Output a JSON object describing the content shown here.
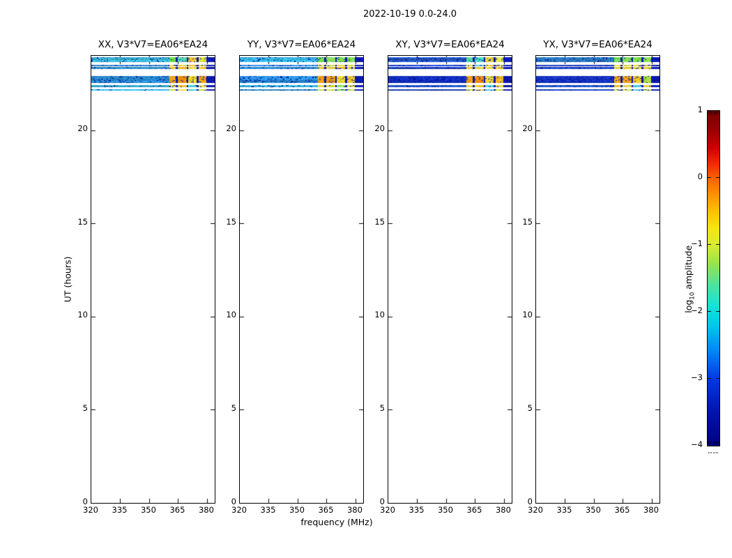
{
  "chart_data": {
    "type": "heatmap",
    "title": "2022-10-19 0.0-24.0",
    "xlabel": "frequency (MHz)",
    "ylabel": "UT (hours)",
    "x_range": [
      320,
      384
    ],
    "y_range": [
      0,
      24
    ],
    "x_ticks": [
      "320",
      "335",
      "350",
      "365",
      "380"
    ],
    "x_tick_values": [
      320,
      335,
      350,
      365,
      380
    ],
    "y_ticks": [
      "20",
      "15",
      "10",
      "5",
      "0"
    ],
    "y_tick_values": [
      20,
      15,
      10,
      5,
      0
    ],
    "grid": false,
    "stripe_rows": [
      {
        "id": "A",
        "ut": [
          23.68,
          23.93
        ]
      },
      {
        "id": "B",
        "ut": [
          23.45,
          23.53
        ]
      },
      {
        "id": "C",
        "ut": [
          23.3,
          23.39
        ]
      },
      {
        "id": "D",
        "ut": [
          22.53,
          22.9
        ]
      },
      {
        "id": "E",
        "ut": [
          22.31,
          22.42
        ]
      },
      {
        "id": "F",
        "ut": [
          22.13,
          22.22
        ]
      }
    ],
    "left_region": [
      0,
      0.63
    ],
    "block_segments": [
      [
        0.63,
        0.686
      ],
      [
        0.701,
        0.772
      ],
      [
        0.787,
        0.854
      ],
      [
        0.869,
        0.93
      ]
    ],
    "right_cap": [
      0.93,
      1.0
    ],
    "gap_color": "#0a18aa",
    "noise_navy": "#0614a0",
    "panels": [
      {
        "key": "xx",
        "label": "XX, V3*V7=EA06*EA24",
        "seed": 101,
        "rows": [
          {
            "left": "#3cc4e8",
            "noise": 0.08,
            "blocks": [
              "#68d844",
              "#52d4a8",
              "#eec22a",
              "#d8dc3a"
            ]
          },
          {
            "left": "#2e8ad8",
            "noise": 0.1,
            "blocks": [
              "#e8d444",
              "#e4cf3a",
              "#f0b824",
              "#e0d23f"
            ]
          },
          {
            "left": "#30a0e0",
            "noise": 0.09,
            "blocks": [
              "#eec22a",
              "#f0ac1c",
              "#e8d444",
              "#eec22a"
            ]
          },
          {
            "left": "#2a96e0",
            "noise": 0.11,
            "blocks": [
              "#f5a00e",
              "#f68e06",
              "#eed31f",
              "#f2a412"
            ]
          },
          {
            "left": "#34bce8",
            "noise": 0.08,
            "blocks": [
              "#e8d444",
              "#eec22a",
              "#44cce8",
              "#e0d23f"
            ]
          },
          {
            "left": "#30b0e4",
            "noise": 0.09,
            "blocks": [
              "#ccd838",
              "#e0d23f",
              "#4ccce0",
              "#c4d636"
            ]
          }
        ]
      },
      {
        "key": "yy",
        "label": "YY, V3*V7=EA06*EA24",
        "seed": 202,
        "rows": [
          {
            "left": "#34b4e2",
            "noise": 0.09,
            "blocks": [
              "#70da46",
              "#8ade5a",
              "#7cdc4c",
              "#82dc52"
            ]
          },
          {
            "left": "#2a7ed2",
            "noise": 0.11,
            "blocks": [
              "#e8d444",
              "#d8e048",
              "#e4cf3a",
              "#e8d444"
            ]
          },
          {
            "left": "#2c92da",
            "noise": 0.1,
            "blocks": [
              "#eec22a",
              "#e4cf3a",
              "#f0b424",
              "#e0d23f"
            ]
          },
          {
            "left": "#2a8cda",
            "noise": 0.12,
            "blocks": [
              "#f5a00e",
              "#f29808",
              "#e8cf3a",
              "#eec22a"
            ]
          },
          {
            "left": "#30b0e2",
            "noise": 0.09,
            "blocks": [
              "#e8d444",
              "#e0d23f",
              "#8ade5a",
              "#d8e048"
            ]
          },
          {
            "left": "#2ca4de",
            "noise": 0.1,
            "blocks": [
              "#c4d636",
              "#ccd838",
              "#70da46",
              "#c8d838"
            ]
          }
        ]
      },
      {
        "key": "xy",
        "label": "XY, V3*V7=EA06*EA24",
        "seed": 303,
        "rows": [
          {
            "left": "#2460d0",
            "noise": 0.16,
            "blocks": [
              "#54d89c",
              "#48d8c0",
              "#e4cf3a",
              "#d8e048"
            ]
          },
          {
            "left": "#1c40c6",
            "noise": 0.18,
            "blocks": [
              "#e8d444",
              "#48c8e4",
              "#eec22a",
              "#e0d23f"
            ]
          },
          {
            "left": "#1e48c8",
            "noise": 0.17,
            "blocks": [
              "#eec22a",
              "#e4cf3a",
              "#e8d444",
              "#eec22a"
            ]
          },
          {
            "left": "#1230ba",
            "noise": 0.2,
            "blocks": [
              "#f5a00e",
              "#f08c06",
              "#e4cf3a",
              "#f0b424"
            ]
          },
          {
            "left": "#2054cc",
            "noise": 0.16,
            "blocks": [
              "#e8d444",
              "#eec22a",
              "#48c8e4",
              "#e0d23f"
            ]
          },
          {
            "left": "#1c48c8",
            "noise": 0.17,
            "blocks": [
              "#ccd838",
              "#e0d23f",
              "#4ccce0",
              "#c4d636"
            ]
          }
        ]
      },
      {
        "key": "yx",
        "label": "YX, V3*V7=EA06*EA24",
        "seed": 404,
        "rows": [
          {
            "left": "#2c88d6",
            "noise": 0.13,
            "blocks": [
              "#70da46",
              "#82dc52",
              "#7cdc4c",
              "#8ade5a"
            ]
          },
          {
            "left": "#1c40c6",
            "noise": 0.18,
            "blocks": [
              "#e8d444",
              "#d8e048",
              "#e4cf3a",
              "#e8d444"
            ]
          },
          {
            "left": "#1e4cca",
            "noise": 0.17,
            "blocks": [
              "#e4cf3a",
              "#eec22a",
              "#e8d444",
              "#e4cf3a"
            ]
          },
          {
            "left": "#1634bc",
            "noise": 0.2,
            "blocks": [
              "#f2a412",
              "#f5a00e",
              "#eec22a",
              "#a8d83e"
            ]
          },
          {
            "left": "#2058ce",
            "noise": 0.16,
            "blocks": [
              "#eec22a",
              "#e8d444",
              "#48c8e4",
              "#e4cf3a"
            ]
          },
          {
            "left": "#1c48c8",
            "noise": 0.17,
            "blocks": [
              "#ccd838",
              "#c4d636",
              "#4ccce0",
              "#c0d634"
            ]
          }
        ]
      }
    ],
    "colorbar": {
      "label_prefix": "log",
      "label_sub": "10",
      "label_suffix": " amplitude",
      "ticks": [
        "1",
        "0",
        "−1",
        "−2",
        "−3",
        "−4"
      ],
      "tick_values": [
        1,
        0,
        -1,
        -2,
        -3,
        -4
      ],
      "range": [
        -4,
        1
      ],
      "gradient": [
        [
          0,
          "#7a0000"
        ],
        [
          0.05,
          "#960000"
        ],
        [
          0.11,
          "#cc0000"
        ],
        [
          0.16,
          "#f22c00"
        ],
        [
          0.2,
          "#fb6000"
        ],
        [
          0.25,
          "#ff9200"
        ],
        [
          0.3,
          "#ffc000"
        ],
        [
          0.35,
          "#f6e414"
        ],
        [
          0.4,
          "#d8ec2e"
        ],
        [
          0.46,
          "#92e44c"
        ],
        [
          0.52,
          "#4ce49e"
        ],
        [
          0.58,
          "#14e4d4"
        ],
        [
          0.64,
          "#00c8f0"
        ],
        [
          0.72,
          "#0084f8"
        ],
        [
          0.8,
          "#0038e8"
        ],
        [
          0.9,
          "#0014b0"
        ],
        [
          1,
          "#000082"
        ]
      ]
    }
  }
}
